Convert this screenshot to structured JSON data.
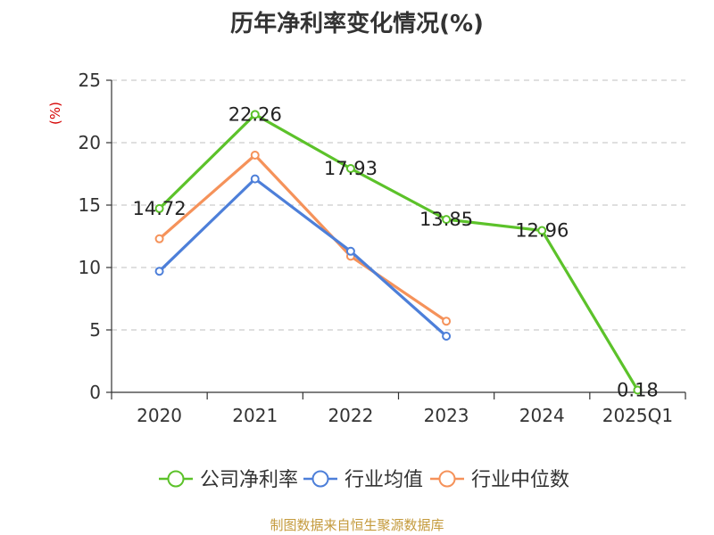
{
  "title": "历年净利率变化情况(%)",
  "footer": "制图数据来自恒生聚源数据库",
  "chart_data": {
    "type": "line",
    "title": "历年净利率变化情况(%)",
    "ylabel": "(%)",
    "xlabel": "",
    "categories": [
      "2020",
      "2021",
      "2022",
      "2023",
      "2024",
      "2025Q1"
    ],
    "ylim": [
      0,
      25
    ],
    "yticks": [
      0,
      5,
      10,
      15,
      20,
      25
    ],
    "grid": "horizontal-dashed",
    "legend_position": "bottom",
    "series": [
      {
        "name": "公司净利率",
        "color": "#5cc22a",
        "values": [
          14.72,
          22.26,
          17.93,
          13.85,
          12.96,
          0.18
        ],
        "labels": [
          "14.72",
          "22.26",
          "17.93",
          "13.85",
          "12.96",
          "0.18"
        ]
      },
      {
        "name": "行业均值",
        "color": "#4d7fd9",
        "values": [
          9.7,
          17.1,
          11.3,
          4.5,
          null,
          null
        ]
      },
      {
        "name": "行业中位数",
        "color": "#f5925a",
        "values": [
          12.3,
          19.0,
          10.9,
          5.7,
          null,
          null
        ]
      }
    ]
  }
}
